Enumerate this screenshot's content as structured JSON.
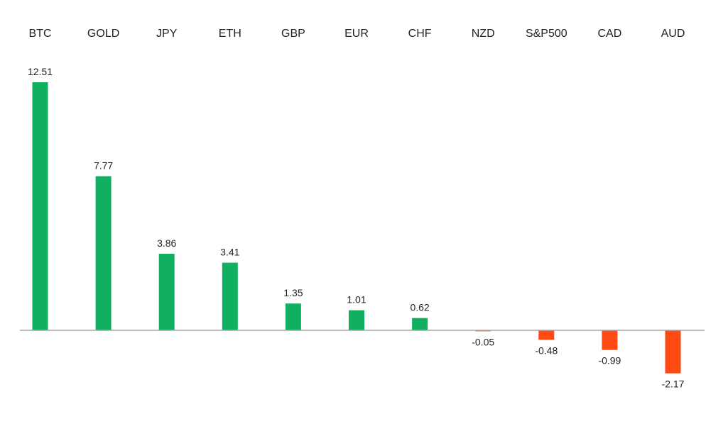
{
  "chart_data": {
    "type": "bar",
    "categories": [
      "BTC",
      "GOLD",
      "JPY",
      "ETH",
      "GBP",
      "EUR",
      "CHF",
      "NZD",
      "S&P500",
      "CAD",
      "AUD"
    ],
    "values": [
      12.51,
      7.77,
      3.86,
      3.41,
      1.35,
      1.01,
      0.62,
      -0.05,
      -0.48,
      -0.99,
      -2.17
    ],
    "value_labels": [
      "12.51",
      "7.77",
      "3.86",
      "3.41",
      "1.35",
      "1.01",
      "0.62",
      "-0.05",
      "-0.48",
      "-0.99",
      "-2.17"
    ],
    "colors": {
      "positive": "#10b060",
      "negative": "#ff4a14",
      "axis": "#a6a6a6"
    },
    "category_labels_position": "top",
    "grid": false,
    "legend": "none",
    "title": "",
    "xlabel": "",
    "ylabel": ""
  }
}
